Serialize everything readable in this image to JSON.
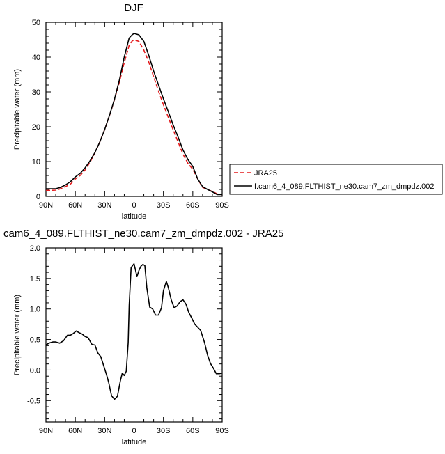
{
  "chart_data": [
    {
      "type": "line",
      "title": "DJF",
      "xlabel": "latitude",
      "ylabel": "Precipitable water (mm)",
      "xlim": [
        90,
        -90
      ],
      "ylim": [
        0,
        50
      ],
      "xticks": [
        90,
        60,
        30,
        0,
        -30,
        -60,
        -90
      ],
      "xtick_labels": [
        "90N",
        "60N",
        "30N",
        "0",
        "30S",
        "60S",
        "90S"
      ],
      "yticks": [
        0,
        10,
        20,
        30,
        40,
        50
      ],
      "ytick_labels": [
        "0",
        "10",
        "20",
        "30",
        "40",
        "50"
      ],
      "legend_position": "right",
      "series": [
        {
          "name": "JRA25",
          "color": "#e31a1c",
          "dash": "dashed",
          "x": [
            90,
            80,
            75,
            70,
            65,
            60,
            55,
            50,
            45,
            40,
            35,
            30,
            25,
            20,
            15,
            10,
            5,
            2,
            0,
            -5,
            -10,
            -15,
            -20,
            -25,
            -30,
            -35,
            -40,
            -45,
            -50,
            -55,
            -60,
            -65,
            -70,
            -75,
            -80,
            -85,
            -90
          ],
          "y": [
            1.7,
            1.8,
            2.2,
            2.8,
            3.5,
            5.0,
            6.0,
            7.6,
            9.8,
            12.5,
            15.6,
            19.2,
            23.3,
            27.8,
            32.8,
            38.4,
            43.4,
            44.6,
            45.0,
            44.5,
            42.0,
            38.6,
            34.4,
            30.2,
            26.3,
            22.7,
            19.1,
            15.6,
            12.1,
            9.5,
            7.8,
            5.0,
            2.6,
            2.0,
            1.4,
            0.7,
            0.5
          ]
        },
        {
          "name": "f.cam6_4_089.FLTHIST_ne30.cam7_zm_dmpdz.002",
          "color": "#000000",
          "dash": "solid",
          "x": [
            90,
            80,
            75,
            70,
            65,
            60,
            55,
            50,
            45,
            40,
            35,
            30,
            25,
            20,
            15,
            10,
            5,
            2,
            0,
            -5,
            -10,
            -15,
            -20,
            -25,
            -30,
            -35,
            -40,
            -45,
            -50,
            -55,
            -60,
            -65,
            -70,
            -75,
            -80,
            -85,
            -90
          ],
          "y": [
            2.2,
            2.2,
            2.6,
            3.3,
            4.2,
            5.6,
            6.6,
            8.2,
            10.2,
            12.6,
            15.6,
            19.2,
            23.4,
            27.9,
            33.4,
            40.0,
            45.5,
            46.4,
            46.8,
            46.4,
            44.5,
            40.5,
            36.0,
            32.0,
            28.0,
            24.3,
            20.5,
            17.0,
            13.3,
            10.6,
            8.6,
            5.0,
            2.8,
            2.0,
            1.3,
            0.5,
            0.5
          ]
        }
      ]
    },
    {
      "type": "line",
      "title": "cam6_4_089.FLTHIST_ne30.cam7_zm_dmpdz.002 - JRA25",
      "xlabel": "latitude",
      "ylabel": "Precipitable water (mm)",
      "xlim": [
        90,
        -90
      ],
      "ylim": [
        -0.85,
        2.0
      ],
      "xticks": [
        90,
        60,
        30,
        0,
        -30,
        -60,
        -90
      ],
      "xtick_labels": [
        "90N",
        "60N",
        "30N",
        "0",
        "30S",
        "60S",
        "90S"
      ],
      "yticks": [
        -0.5,
        0.0,
        0.5,
        1.0,
        1.5,
        2.0
      ],
      "ytick_labels": [
        "-0.5",
        "0.0",
        "0.5",
        "1.0",
        "1.5",
        "2.0"
      ],
      "series": [
        {
          "color": "#000000",
          "dash": "solid",
          "x": [
            90,
            87,
            83,
            80,
            76,
            72,
            68,
            65,
            62,
            59,
            56,
            53,
            50,
            47,
            43,
            40,
            37,
            34,
            31,
            28,
            26,
            23,
            20,
            17,
            14,
            12,
            10,
            8,
            6,
            5,
            3,
            0,
            -3,
            -5,
            -7,
            -9,
            -11,
            -13,
            -16,
            -19,
            -22,
            -25,
            -28,
            -30,
            -33,
            -35,
            -38,
            -41,
            -44,
            -47,
            -50,
            -53,
            -56,
            -59,
            -62,
            -65,
            -68,
            -70,
            -72,
            -75,
            -78,
            -81,
            -84,
            -87,
            -90
          ],
          "y": [
            0.41,
            0.44,
            0.46,
            0.46,
            0.44,
            0.48,
            0.57,
            0.57,
            0.6,
            0.64,
            0.61,
            0.59,
            0.55,
            0.53,
            0.42,
            0.41,
            0.28,
            0.22,
            0.07,
            -0.08,
            -0.2,
            -0.42,
            -0.48,
            -0.43,
            -0.18,
            -0.05,
            -0.09,
            -0.02,
            0.45,
            1.06,
            1.68,
            1.74,
            1.53,
            1.63,
            1.7,
            1.73,
            1.71,
            1.35,
            1.03,
            1.0,
            0.9,
            0.9,
            1.02,
            1.3,
            1.45,
            1.35,
            1.15,
            1.02,
            1.05,
            1.12,
            1.15,
            1.08,
            0.94,
            0.85,
            0.75,
            0.7,
            0.65,
            0.55,
            0.45,
            0.25,
            0.11,
            0.03,
            -0.06,
            -0.06,
            -0.05
          ]
        }
      ]
    }
  ]
}
